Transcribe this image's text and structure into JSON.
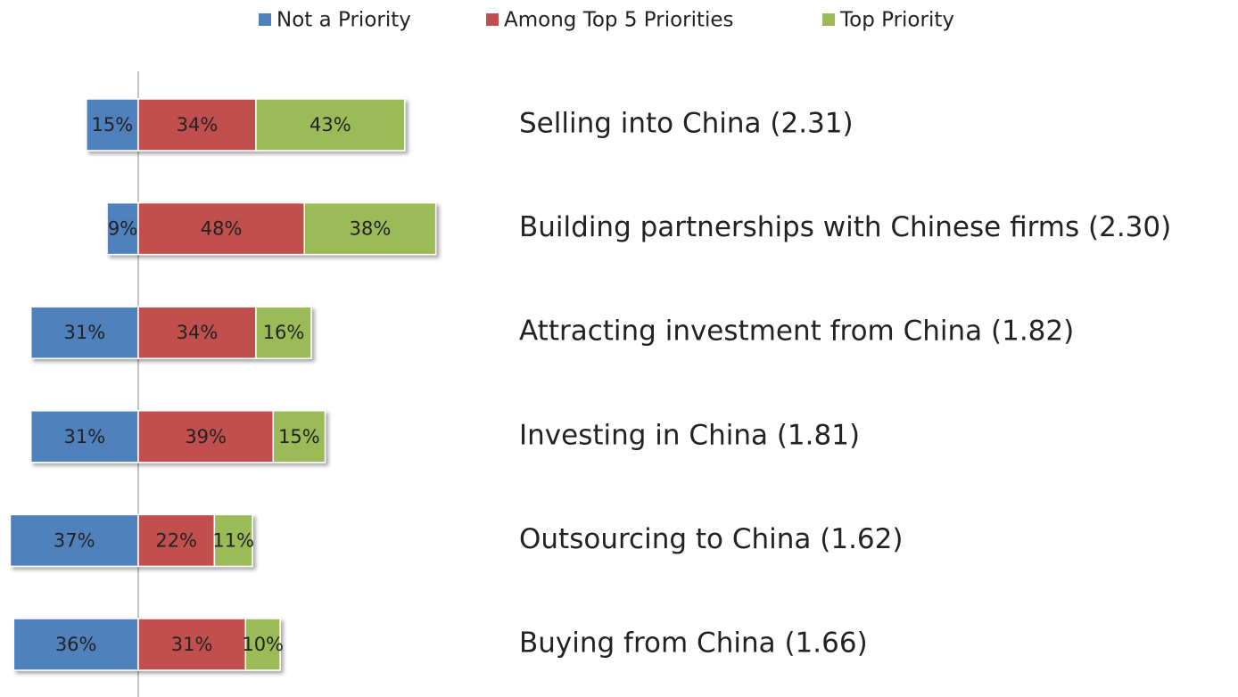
{
  "chart_data": {
    "type": "diverging-bar",
    "categories": [
      "Selling into China (2.31)",
      "Building partnerships  with Chinese firms (2.30)",
      "Attracting investment from China (1.82)",
      "Investing in China (1.81)",
      "Outsourcing to China (1.62)",
      "Buying from China (1.66)"
    ],
    "series": [
      {
        "name": "Not a Priority",
        "color": "#4f81bd",
        "values": [
          15,
          9,
          31,
          31,
          37,
          36
        ],
        "value_labels": [
          "15%",
          "9%",
          "31%",
          "31%",
          "37%",
          "36%"
        ]
      },
      {
        "name": "Among Top 5 Priorities",
        "color": "#c0504d",
        "values": [
          34,
          48,
          34,
          39,
          22,
          31
        ],
        "value_labels": [
          "34%",
          "48%",
          "34%",
          "39%",
          "22%",
          "31%"
        ]
      },
      {
        "name": "Top Priority",
        "color": "#9bbb59",
        "values": [
          43,
          38,
          16,
          15,
          11,
          10
        ],
        "value_labels": [
          "43%",
          "38%",
          "16%",
          "15%",
          "11%",
          "10%"
        ]
      }
    ],
    "legend": "top"
  }
}
